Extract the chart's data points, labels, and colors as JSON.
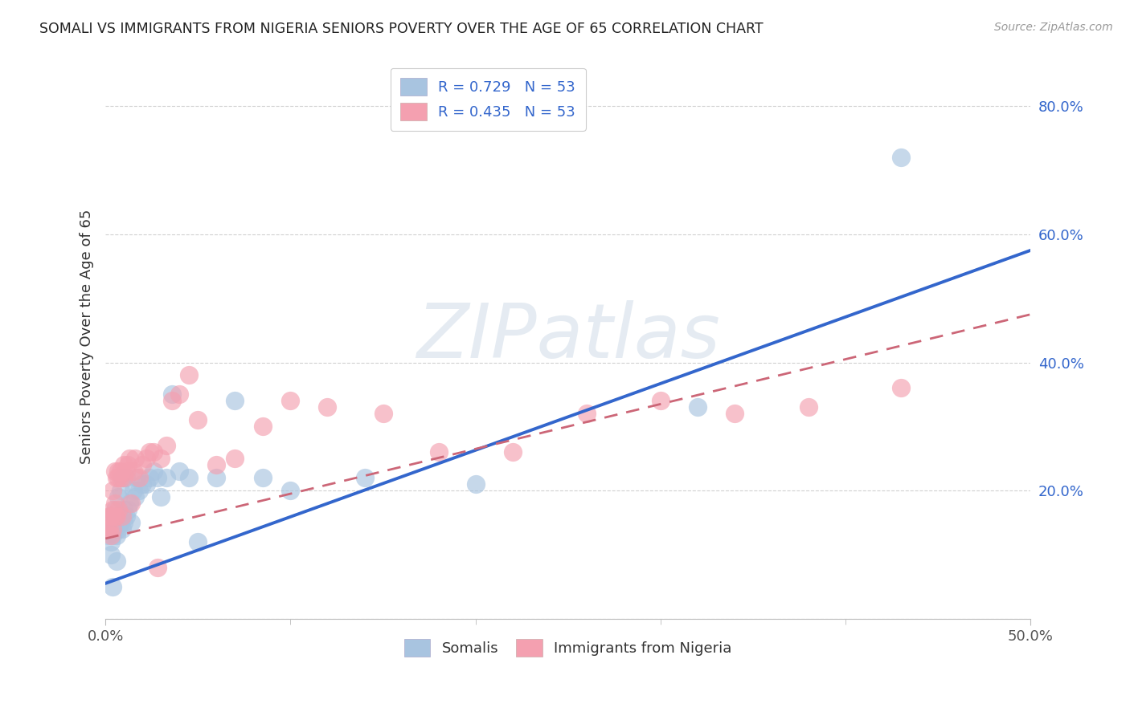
{
  "title": "SOMALI VS IMMIGRANTS FROM NIGERIA SENIORS POVERTY OVER THE AGE OF 65 CORRELATION CHART",
  "source": "Source: ZipAtlas.com",
  "ylabel": "Seniors Poverty Over the Age of 65",
  "xlim": [
    0.0,
    0.5
  ],
  "ylim": [
    0.0,
    0.88
  ],
  "yticks": [
    0.0,
    0.2,
    0.4,
    0.6,
    0.8
  ],
  "ytick_labels": [
    "",
    "20.0%",
    "40.0%",
    "60.0%",
    "80.0%"
  ],
  "xtick_left_label": "0.0%",
  "xtick_right_label": "50.0%",
  "somali_R": 0.729,
  "nigeria_R": 0.435,
  "N": 53,
  "somali_color": "#a8c4e0",
  "nigeria_color": "#f4a0b0",
  "somali_line_color": "#3366cc",
  "nigeria_line_color": "#cc6677",
  "background_color": "#ffffff",
  "grid_color": "#cccccc",
  "watermark": "ZIPatlas",
  "watermark_color": "#d0dce8",
  "legend_somali_label": "R = 0.729   N = 53",
  "legend_nigeria_label": "R = 0.435   N = 53",
  "somali_x": [
    0.001,
    0.002,
    0.002,
    0.003,
    0.003,
    0.003,
    0.004,
    0.004,
    0.004,
    0.004,
    0.005,
    0.005,
    0.005,
    0.006,
    0.006,
    0.006,
    0.007,
    0.007,
    0.007,
    0.008,
    0.008,
    0.009,
    0.009,
    0.01,
    0.01,
    0.011,
    0.011,
    0.012,
    0.013,
    0.014,
    0.015,
    0.016,
    0.017,
    0.018,
    0.02,
    0.022,
    0.024,
    0.026,
    0.028,
    0.03,
    0.033,
    0.036,
    0.04,
    0.045,
    0.05,
    0.06,
    0.07,
    0.085,
    0.1,
    0.14,
    0.2,
    0.32,
    0.43
  ],
  "somali_y": [
    0.13,
    0.14,
    0.15,
    0.1,
    0.12,
    0.14,
    0.13,
    0.15,
    0.16,
    0.05,
    0.14,
    0.15,
    0.17,
    0.13,
    0.16,
    0.09,
    0.14,
    0.16,
    0.19,
    0.15,
    0.2,
    0.14,
    0.22,
    0.15,
    0.17,
    0.16,
    0.22,
    0.17,
    0.18,
    0.15,
    0.2,
    0.19,
    0.22,
    0.2,
    0.21,
    0.21,
    0.22,
    0.23,
    0.22,
    0.19,
    0.22,
    0.35,
    0.23,
    0.22,
    0.12,
    0.22,
    0.34,
    0.22,
    0.2,
    0.22,
    0.21,
    0.33,
    0.72
  ],
  "nigeria_x": [
    0.001,
    0.002,
    0.002,
    0.003,
    0.003,
    0.003,
    0.004,
    0.004,
    0.004,
    0.005,
    0.005,
    0.005,
    0.006,
    0.006,
    0.007,
    0.007,
    0.007,
    0.008,
    0.008,
    0.009,
    0.01,
    0.01,
    0.011,
    0.012,
    0.013,
    0.014,
    0.015,
    0.016,
    0.018,
    0.02,
    0.022,
    0.024,
    0.026,
    0.028,
    0.03,
    0.033,
    0.036,
    0.04,
    0.045,
    0.05,
    0.06,
    0.07,
    0.085,
    0.1,
    0.12,
    0.15,
    0.18,
    0.22,
    0.26,
    0.3,
    0.34,
    0.38,
    0.43
  ],
  "nigeria_y": [
    0.14,
    0.14,
    0.16,
    0.16,
    0.13,
    0.16,
    0.14,
    0.17,
    0.2,
    0.16,
    0.18,
    0.23,
    0.16,
    0.22,
    0.17,
    0.22,
    0.23,
    0.22,
    0.23,
    0.16,
    0.22,
    0.24,
    0.23,
    0.24,
    0.25,
    0.18,
    0.23,
    0.25,
    0.22,
    0.24,
    0.25,
    0.26,
    0.26,
    0.08,
    0.25,
    0.27,
    0.34,
    0.35,
    0.38,
    0.31,
    0.24,
    0.25,
    0.3,
    0.34,
    0.33,
    0.32,
    0.26,
    0.26,
    0.32,
    0.34,
    0.32,
    0.33,
    0.36
  ],
  "somali_line_x0": 0.0,
  "somali_line_y0": 0.055,
  "somali_line_x1": 0.5,
  "somali_line_y1": 0.575,
  "nigeria_line_x0": 0.0,
  "nigeria_line_y0": 0.125,
  "nigeria_line_x1": 0.5,
  "nigeria_line_y1": 0.475
}
